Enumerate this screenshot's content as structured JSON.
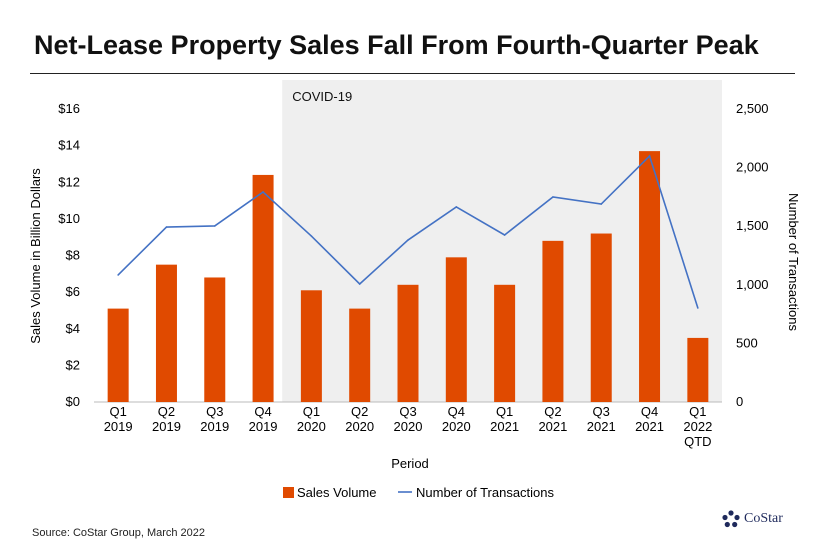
{
  "title": "Net-Lease Property Sales Fall From Fourth-Quarter Peak",
  "source": "Source: CoStar Group, March 2022",
  "logo": "CoStar",
  "colors": {
    "bar": "#e04a00",
    "line": "#4472c4",
    "shade": "#efefef"
  },
  "chart_data": {
    "type": "bar+line",
    "categories": [
      [
        "Q1",
        "2019"
      ],
      [
        "Q2",
        "2019"
      ],
      [
        "Q3",
        "2019"
      ],
      [
        "Q4",
        "2019"
      ],
      [
        "Q1",
        "2020"
      ],
      [
        "Q2",
        "2020"
      ],
      [
        "Q3",
        "2020"
      ],
      [
        "Q4",
        "2020"
      ],
      [
        "Q1",
        "2021"
      ],
      [
        "Q2",
        "2021"
      ],
      [
        "Q3",
        "2021"
      ],
      [
        "Q4",
        "2021"
      ],
      [
        "Q1",
        "2022",
        "QTD"
      ]
    ],
    "series": [
      {
        "name": "Sales Volume",
        "axis": "left",
        "type": "bar",
        "values": [
          5.1,
          7.5,
          6.8,
          12.4,
          6.1,
          5.1,
          6.4,
          7.9,
          6.4,
          8.8,
          9.2,
          13.7,
          3.5
        ]
      },
      {
        "name": "Number of Transactions",
        "axis": "right",
        "type": "line",
        "values": [
          1084,
          1493,
          1502,
          1792,
          1416,
          1007,
          1382,
          1664,
          1425,
          1749,
          1689,
          2099,
          802
        ]
      }
    ],
    "xlabel": "Period",
    "ylabel": "Sales Volume in Billion Dollars",
    "y2label": "Number of Transactions",
    "ylim": [
      0,
      16
    ],
    "y2lim": [
      0,
      2500
    ],
    "yticks": [
      "$0",
      "$2",
      "$4",
      "$6",
      "$8",
      "$10",
      "$12",
      "$14",
      "$16"
    ],
    "y2ticks": [
      "0",
      "500",
      "1,000",
      "1,500",
      "2,000",
      "2,500"
    ],
    "annotation": {
      "label": "COVID-19",
      "start_index": 4,
      "end_index": 12
    },
    "legend": "bottom"
  }
}
